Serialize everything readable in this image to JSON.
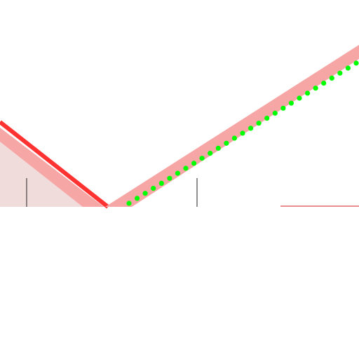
{
  "colors": {
    "background": "#ffffff",
    "fill_region": "#f1dcdc",
    "band_light": "#f7a6a6",
    "line_red": "#ff3232",
    "dots_green": "#00ff00",
    "tick_dark": "#222222",
    "baseline_red": "#e06868"
  },
  "elements": {
    "left_region": "shaded-triangle",
    "right_band": "pink-band",
    "dots": "green-dotted-line",
    "ticks": [
      "tick-mark",
      "tick-mark"
    ],
    "baseline": "short-red-baseline"
  }
}
